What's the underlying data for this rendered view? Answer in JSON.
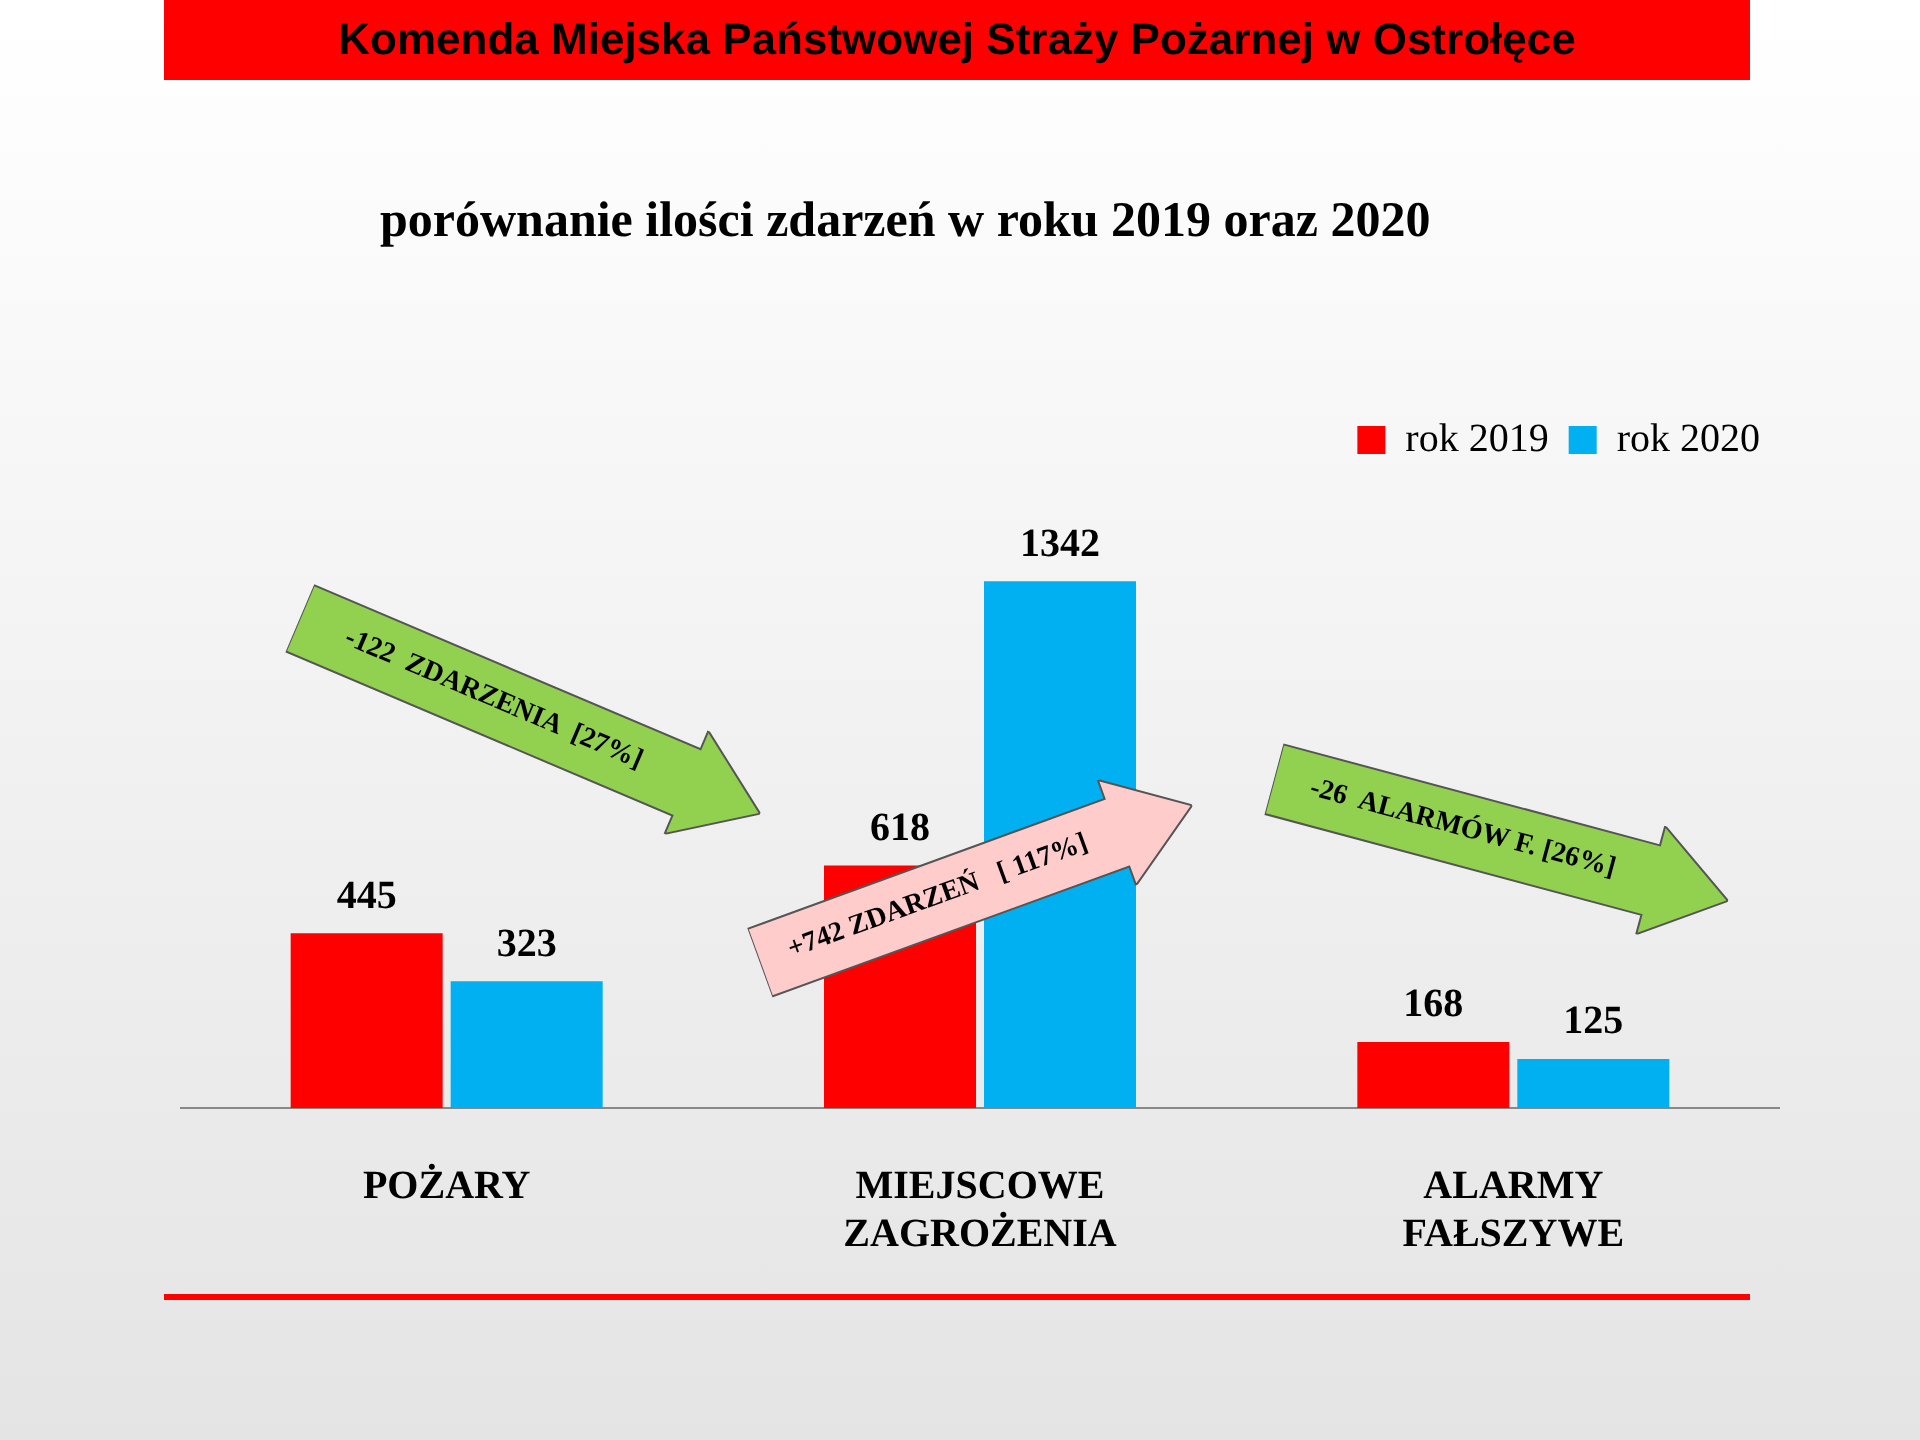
{
  "chart_data": {
    "type": "bar",
    "title": "Komenda Miejska Państwowej Straży Pożarnej w Ostrołęce",
    "subtitle": "porównanie ilości zdarzeń w roku 2019 oraz 2020",
    "categories": [
      "POŻARY",
      "MIEJSCOWE ZAGROŻENIA",
      "ALARMY FAŁSZYWE"
    ],
    "series": [
      {
        "name": "rok 2019",
        "color": "#ff0000",
        "values": [
          445,
          618,
          168
        ]
      },
      {
        "name": "rok 2020",
        "color": "#00b0f0",
        "values": [
          323,
          1342,
          125
        ]
      }
    ],
    "data_labels": true,
    "legend": "top right",
    "grid": false,
    "tick_labels": "x",
    "annotations": [
      "-122  ZDARZENIA  [27%]",
      "+742 ZDARZEŃ   [ 117%]",
      "-26  ALARMÓW F. [26%]"
    ]
  }
}
